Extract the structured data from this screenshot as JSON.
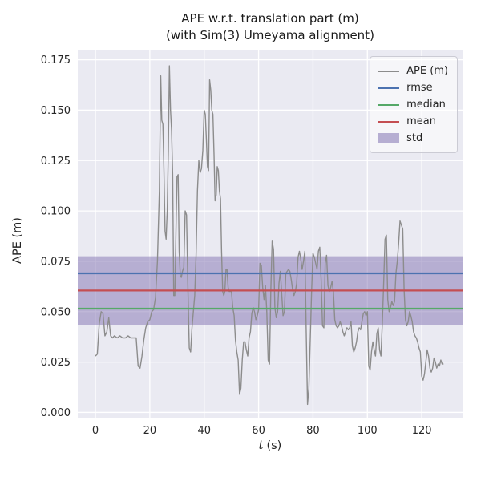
{
  "figure": {
    "title_line1": "APE w.r.t. translation part (m)",
    "title_line2": "(with Sim(3) Umeyama alignment)",
    "xlabel_var": "t",
    "xlabel_unit": "(s)",
    "ylabel": "APE (m)"
  },
  "colors": {
    "plot_bg": "#eaeaf2",
    "grid": "#ffffff",
    "ape": "#8c8c8c",
    "rmse": "#4c72b0",
    "median": "#55a868",
    "mean": "#c44e52",
    "std": "#8172b2"
  },
  "legend": [
    {
      "label": "APE (m)",
      "type": "line",
      "color": "#8c8c8c"
    },
    {
      "label": "rmse",
      "type": "line",
      "color": "#4c72b0"
    },
    {
      "label": "median",
      "type": "line",
      "color": "#55a868"
    },
    {
      "label": "mean",
      "type": "line",
      "color": "#c44e52"
    },
    {
      "label": "std",
      "type": "patch",
      "color": "#8172b2"
    }
  ],
  "chart_data": {
    "type": "line",
    "title": "APE w.r.t. translation part (m) (with Sim(3) Umeyama alignment)",
    "xlabel": "t (s)",
    "ylabel": "APE (m)",
    "xlim": [
      -6.5,
      135.0
    ],
    "ylim": [
      -0.003,
      0.18
    ],
    "xticks": [
      0,
      20,
      40,
      60,
      80,
      100,
      120
    ],
    "xtick_labels": [
      "0",
      "20",
      "40",
      "60",
      "80",
      "100",
      "120"
    ],
    "yticks": [
      0.0,
      0.025,
      0.05,
      0.075,
      0.1,
      0.125,
      0.15,
      0.175
    ],
    "ytick_labels": [
      "0.000",
      "0.025",
      "0.050",
      "0.075",
      "0.100",
      "0.125",
      "0.150",
      "0.175"
    ],
    "grid": true,
    "legend_position": "upper right",
    "stats": {
      "rmse": 0.069,
      "mean": 0.0605,
      "median": 0.0515,
      "std": 0.017,
      "std_band": [
        0.0435,
        0.0775
      ]
    },
    "series": [
      {
        "name": "APE (m)",
        "points": [
          [
            0,
            0.028
          ],
          [
            0.7,
            0.029
          ],
          [
            1.4,
            0.044
          ],
          [
            2.1,
            0.05
          ],
          [
            2.8,
            0.049
          ],
          [
            3.5,
            0.038
          ],
          [
            4.2,
            0.04
          ],
          [
            4.9,
            0.047
          ],
          [
            5.6,
            0.038
          ],
          [
            6.3,
            0.037
          ],
          [
            7,
            0.038
          ],
          [
            8,
            0.037
          ],
          [
            9,
            0.038
          ],
          [
            10,
            0.037
          ],
          [
            11,
            0.037
          ],
          [
            12,
            0.038
          ],
          [
            13,
            0.037
          ],
          [
            14,
            0.037
          ],
          [
            15,
            0.037
          ],
          [
            15.7,
            0.023
          ],
          [
            16.4,
            0.022
          ],
          [
            17.1,
            0.028
          ],
          [
            17.8,
            0.036
          ],
          [
            18.5,
            0.042
          ],
          [
            19.2,
            0.045
          ],
          [
            20,
            0.046
          ],
          [
            20.7,
            0.05
          ],
          [
            21.4,
            0.051
          ],
          [
            22.1,
            0.057
          ],
          [
            22.8,
            0.075
          ],
          [
            23.5,
            0.11
          ],
          [
            24,
            0.167
          ],
          [
            24.4,
            0.145
          ],
          [
            24.8,
            0.143
          ],
          [
            25.2,
            0.12
          ],
          [
            25.6,
            0.09
          ],
          [
            26,
            0.086
          ],
          [
            26.4,
            0.1
          ],
          [
            26.8,
            0.13
          ],
          [
            27.2,
            0.172
          ],
          [
            27.6,
            0.15
          ],
          [
            28,
            0.14
          ],
          [
            28.4,
            0.118
          ],
          [
            28.8,
            0.058
          ],
          [
            29.2,
            0.058
          ],
          [
            29.6,
            0.09
          ],
          [
            30,
            0.117
          ],
          [
            30.4,
            0.118
          ],
          [
            30.8,
            0.08
          ],
          [
            31.2,
            0.068
          ],
          [
            31.6,
            0.067
          ],
          [
            32,
            0.07
          ],
          [
            32.5,
            0.072
          ],
          [
            33,
            0.1
          ],
          [
            33.5,
            0.098
          ],
          [
            34,
            0.062
          ],
          [
            34.5,
            0.032
          ],
          [
            35,
            0.03
          ],
          [
            35.5,
            0.042
          ],
          [
            36,
            0.05
          ],
          [
            36.5,
            0.058
          ],
          [
            37,
            0.078
          ],
          [
            37.5,
            0.11
          ],
          [
            38,
            0.125
          ],
          [
            38.5,
            0.119
          ],
          [
            39,
            0.121
          ],
          [
            39.5,
            0.13
          ],
          [
            40,
            0.15
          ],
          [
            40.4,
            0.148
          ],
          [
            40.8,
            0.135
          ],
          [
            41.2,
            0.122
          ],
          [
            41.6,
            0.12
          ],
          [
            42,
            0.165
          ],
          [
            42.4,
            0.16
          ],
          [
            42.8,
            0.15
          ],
          [
            43.2,
            0.148
          ],
          [
            43.6,
            0.128
          ],
          [
            44,
            0.105
          ],
          [
            44.4,
            0.108
          ],
          [
            44.8,
            0.122
          ],
          [
            45.2,
            0.12
          ],
          [
            45.6,
            0.11
          ],
          [
            46,
            0.106
          ],
          [
            46.4,
            0.08
          ],
          [
            46.8,
            0.06
          ],
          [
            47.2,
            0.058
          ],
          [
            47.6,
            0.06
          ],
          [
            48,
            0.071
          ],
          [
            48.4,
            0.071
          ],
          [
            48.8,
            0.062
          ],
          [
            49.2,
            0.06
          ],
          [
            49.6,
            0.06
          ],
          [
            50,
            0.06
          ],
          [
            50.5,
            0.052
          ],
          [
            51,
            0.048
          ],
          [
            51.5,
            0.036
          ],
          [
            52,
            0.03
          ],
          [
            52.5,
            0.026
          ],
          [
            53,
            0.009
          ],
          [
            53.5,
            0.012
          ],
          [
            54,
            0.026
          ],
          [
            54.5,
            0.035
          ],
          [
            55,
            0.035
          ],
          [
            55.5,
            0.031
          ],
          [
            56,
            0.028
          ],
          [
            56.5,
            0.037
          ],
          [
            57,
            0.04
          ],
          [
            57.5,
            0.049
          ],
          [
            58,
            0.052
          ],
          [
            58.5,
            0.05
          ],
          [
            59,
            0.046
          ],
          [
            59.5,
            0.048
          ],
          [
            60,
            0.051
          ],
          [
            60.5,
            0.074
          ],
          [
            61,
            0.073
          ],
          [
            61.5,
            0.062
          ],
          [
            62,
            0.056
          ],
          [
            62.5,
            0.063
          ],
          [
            63,
            0.05
          ],
          [
            63.5,
            0.026
          ],
          [
            64,
            0.024
          ],
          [
            64.5,
            0.06
          ],
          [
            65,
            0.085
          ],
          [
            65.5,
            0.081
          ],
          [
            66,
            0.052
          ],
          [
            66.5,
            0.047
          ],
          [
            67,
            0.05
          ],
          [
            67.5,
            0.064
          ],
          [
            68,
            0.07
          ],
          [
            68.5,
            0.059
          ],
          [
            69,
            0.048
          ],
          [
            69.5,
            0.05
          ],
          [
            70,
            0.069
          ],
          [
            70.5,
            0.07
          ],
          [
            71,
            0.071
          ],
          [
            71.5,
            0.07
          ],
          [
            72,
            0.066
          ],
          [
            72.5,
            0.061
          ],
          [
            73,
            0.058
          ],
          [
            73.5,
            0.06
          ],
          [
            74,
            0.064
          ],
          [
            74.5,
            0.077
          ],
          [
            75,
            0.08
          ],
          [
            75.5,
            0.076
          ],
          [
            76,
            0.071
          ],
          [
            76.5,
            0.075
          ],
          [
            77,
            0.08
          ],
          [
            77.5,
            0.042
          ],
          [
            78,
            0.004
          ],
          [
            78.5,
            0.012
          ],
          [
            79,
            0.036
          ],
          [
            79.5,
            0.06
          ],
          [
            80,
            0.079
          ],
          [
            80.5,
            0.077
          ],
          [
            81,
            0.074
          ],
          [
            81.5,
            0.071
          ],
          [
            82,
            0.08
          ],
          [
            82.5,
            0.082
          ],
          [
            83,
            0.066
          ],
          [
            83.5,
            0.043
          ],
          [
            84,
            0.042
          ],
          [
            84.5,
            0.074
          ],
          [
            85,
            0.078
          ],
          [
            85.5,
            0.063
          ],
          [
            86,
            0.06
          ],
          [
            86.5,
            0.062
          ],
          [
            87,
            0.065
          ],
          [
            87.5,
            0.06
          ],
          [
            88,
            0.046
          ],
          [
            88.5,
            0.043
          ],
          [
            89,
            0.042
          ],
          [
            89.5,
            0.043
          ],
          [
            90,
            0.045
          ],
          [
            90.5,
            0.043
          ],
          [
            91,
            0.04
          ],
          [
            91.5,
            0.038
          ],
          [
            92,
            0.04
          ],
          [
            92.5,
            0.042
          ],
          [
            93,
            0.041
          ],
          [
            93.5,
            0.042
          ],
          [
            94,
            0.045
          ],
          [
            94.5,
            0.033
          ],
          [
            95,
            0.03
          ],
          [
            95.5,
            0.032
          ],
          [
            96,
            0.035
          ],
          [
            96.5,
            0.04
          ],
          [
            97,
            0.042
          ],
          [
            97.5,
            0.041
          ],
          [
            98,
            0.045
          ],
          [
            98.5,
            0.049
          ],
          [
            99,
            0.05
          ],
          [
            99.5,
            0.048
          ],
          [
            100,
            0.05
          ],
          [
            100.5,
            0.023
          ],
          [
            101,
            0.021
          ],
          [
            101.5,
            0.03
          ],
          [
            102,
            0.035
          ],
          [
            102.5,
            0.031
          ],
          [
            103,
            0.028
          ],
          [
            103.5,
            0.039
          ],
          [
            104,
            0.042
          ],
          [
            104.5,
            0.031
          ],
          [
            105,
            0.028
          ],
          [
            105.5,
            0.044
          ],
          [
            106,
            0.064
          ],
          [
            106.5,
            0.086
          ],
          [
            107,
            0.088
          ],
          [
            107.5,
            0.056
          ],
          [
            108,
            0.05
          ],
          [
            108.5,
            0.052
          ],
          [
            109,
            0.055
          ],
          [
            109.5,
            0.053
          ],
          [
            110,
            0.055
          ],
          [
            110.5,
            0.069
          ],
          [
            111,
            0.075
          ],
          [
            111.5,
            0.084
          ],
          [
            112,
            0.095
          ],
          [
            112.5,
            0.093
          ],
          [
            113,
            0.091
          ],
          [
            113.5,
            0.061
          ],
          [
            114,
            0.046
          ],
          [
            114.5,
            0.043
          ],
          [
            115,
            0.045
          ],
          [
            115.5,
            0.05
          ],
          [
            116,
            0.048
          ],
          [
            116.5,
            0.045
          ],
          [
            117,
            0.04
          ],
          [
            117.5,
            0.038
          ],
          [
            118,
            0.037
          ],
          [
            118.5,
            0.035
          ],
          [
            119,
            0.032
          ],
          [
            119.5,
            0.03
          ],
          [
            120,
            0.018
          ],
          [
            120.5,
            0.016
          ],
          [
            121,
            0.019
          ],
          [
            121.5,
            0.025
          ],
          [
            122,
            0.031
          ],
          [
            122.5,
            0.028
          ],
          [
            123,
            0.022
          ],
          [
            123.5,
            0.02
          ],
          [
            124,
            0.022
          ],
          [
            124.5,
            0.027
          ],
          [
            125,
            0.025
          ],
          [
            125.5,
            0.022
          ],
          [
            126,
            0.024
          ],
          [
            126.5,
            0.023
          ],
          [
            127,
            0.026
          ],
          [
            127.5,
            0.024
          ],
          [
            128,
            0.024
          ]
        ]
      }
    ]
  }
}
